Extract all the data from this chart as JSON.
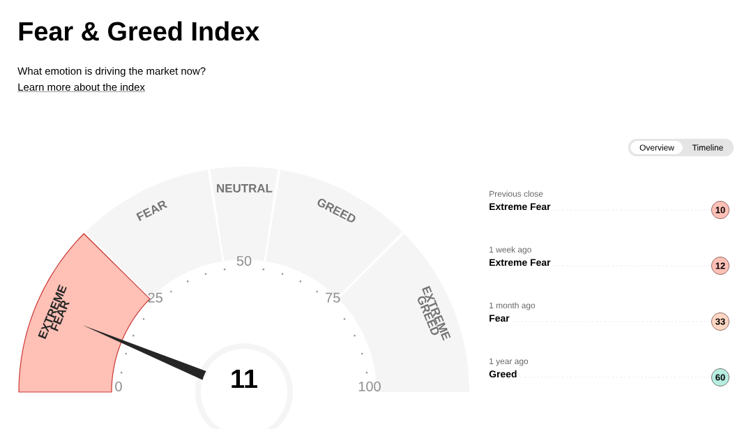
{
  "chart_data": [
    {
      "type": "donut",
      "title": "Fear & Greed Index",
      "subtitle": "What emotion is driving the market now?",
      "annotations": [
        "Learn more about the index",
        "11",
        "0",
        "25",
        "50",
        "75",
        "100"
      ],
      "categories": [
        "EXTREME FEAR",
        "FEAR",
        "NEUTRAL",
        "GREED",
        "EXTREME GREED"
      ],
      "values": [
        25,
        20,
        10,
        20,
        25
      ],
      "colors": [
        "#ffc0b6",
        "#f5f5f5",
        "#f5f5f5",
        "#f5f5f5",
        "#f5f5f5"
      ],
      "needle": "EXTREME FEAR"
    },
    {
      "type": "other",
      "categories": [
        "Previous close",
        "1 week ago",
        "1 month ago",
        "1 year ago"
      ],
      "values": [
        10,
        12,
        33,
        60
      ],
      "data_labels": true,
      "colors": [
        "#ffc0b6",
        "#ffc0b6",
        "#ffd6c3",
        "#b6ede0"
      ],
      "annotations": [
        "Overview",
        "Timeline",
        "Extreme Fear",
        "Extreme Fear",
        "Fear",
        "Greed"
      ]
    }
  ]
}
